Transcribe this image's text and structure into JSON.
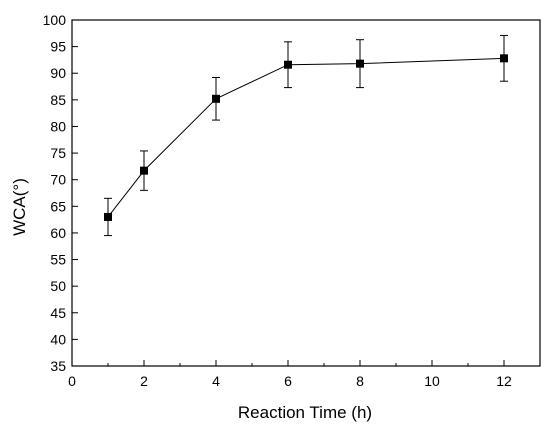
{
  "chart_data": {
    "type": "line",
    "title": "",
    "xlabel": "Reaction Time (h)",
    "ylabel": "WCA(°)",
    "xlim": [
      0,
      13
    ],
    "ylim": [
      35,
      100
    ],
    "x_ticks": [
      0,
      2,
      4,
      6,
      8,
      10,
      12
    ],
    "y_ticks": [
      35,
      40,
      45,
      50,
      55,
      60,
      65,
      70,
      75,
      80,
      85,
      90,
      95,
      100
    ],
    "grid": false,
    "legend": "none",
    "marker": "square",
    "series": [
      {
        "x": [
          1,
          2,
          4,
          6,
          8,
          12
        ],
        "y": [
          63.0,
          71.7,
          85.2,
          91.6,
          91.8,
          92.8
        ],
        "error": [
          3.5,
          3.7,
          4.0,
          4.3,
          4.5,
          4.3
        ]
      }
    ]
  }
}
